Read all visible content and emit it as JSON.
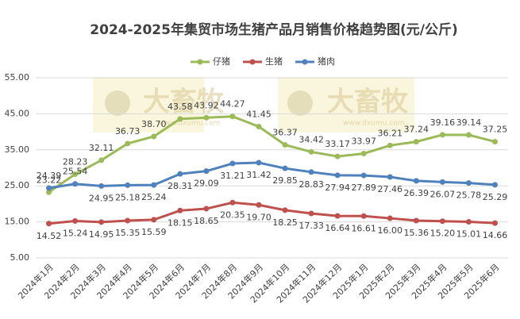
{
  "chart_data": {
    "type": "line",
    "title": "2024-2025年集贸市场生猪产品月销售价格趋势图(元/公斤)",
    "watermark": {
      "text": "大畜牧",
      "url": "www.dxumu.com"
    },
    "categories": [
      "2024年1月",
      "2024年2月",
      "2024年3月",
      "2024年4月",
      "2024年5月",
      "2024年6月",
      "2024年7月",
      "2024年8月",
      "2024年9月",
      "2024年10月",
      "2024年11月",
      "2024年12月",
      "2025年1月",
      "2025年2月",
      "2025年3月",
      "2025年4月",
      "2025年5月",
      "2025年6月"
    ],
    "series": [
      {
        "name": "仔猪",
        "color": "#9bbb59",
        "values": [
          23.22,
          28.23,
          32.11,
          36.73,
          38.7,
          43.58,
          43.92,
          44.27,
          41.45,
          36.37,
          34.42,
          33.17,
          33.97,
          36.21,
          37.24,
          39.16,
          39.14,
          37.25
        ],
        "value_labels": [
          "23.22",
          "28.23",
          "32.11",
          "36.73",
          "38.70",
          "43.58",
          "43.92",
          "44.27",
          "41.45",
          "36.37",
          "34.42",
          "33.17",
          "33.97",
          "36.21",
          "37.24",
          "39.16",
          "39.14",
          "37.25"
        ]
      },
      {
        "name": "生猪",
        "color": "#c0504d",
        "values": [
          14.52,
          15.24,
          14.95,
          15.35,
          15.59,
          18.15,
          18.65,
          20.35,
          19.7,
          18.25,
          17.33,
          16.64,
          16.61,
          16.0,
          15.36,
          15.2,
          15.01,
          14.66
        ],
        "value_labels": [
          "14.52",
          "15.24",
          "14.95",
          "15.35",
          "15.59",
          "18.15",
          "18.65",
          "20.35",
          "19.70",
          "18.25",
          "17.33",
          "16.64",
          "16.61",
          "16.00",
          "15.36",
          "15.20",
          "15.01",
          "14.66"
        ]
      },
      {
        "name": "猪肉",
        "color": "#4f81bd",
        "values": [
          24.39,
          25.54,
          24.95,
          25.18,
          25.24,
          28.31,
          29.09,
          31.21,
          31.42,
          29.85,
          28.83,
          27.94,
          27.89,
          27.46,
          26.39,
          26.07,
          25.78,
          25.29
        ],
        "value_labels": [
          "24.39",
          "25.54",
          "24.95",
          "25.18",
          "25.24",
          "28.31",
          "29.09",
          "31.21",
          "31.42",
          "29.85",
          "28.83",
          "27.94",
          "27.89",
          "27.46",
          "26.39",
          "26.07",
          "25.78",
          "25.29"
        ]
      }
    ],
    "ylim": [
      5,
      55
    ],
    "yticks": [
      {
        "value": 5,
        "label": "5.00"
      },
      {
        "value": 15,
        "label": "15.00"
      },
      {
        "value": 25,
        "label": "25.00"
      },
      {
        "value": 35,
        "label": "35.00"
      },
      {
        "value": 45,
        "label": "45.00"
      },
      {
        "value": 55,
        "label": "55.00"
      }
    ],
    "grid": true,
    "legend": "top"
  }
}
